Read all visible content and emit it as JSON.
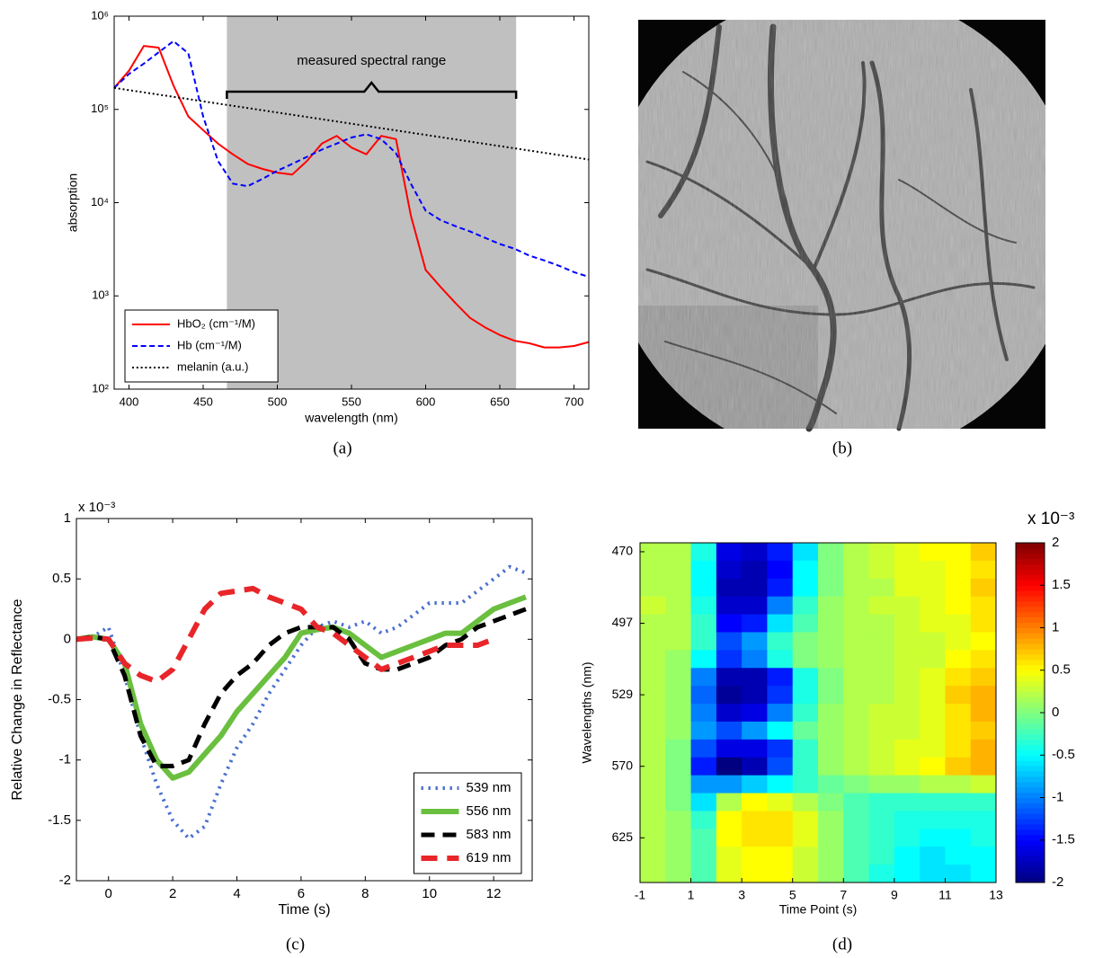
{
  "chart_data": [
    {
      "type": "line",
      "caption": "(a)",
      "xlabel": "wavelength (nm)",
      "ylabel": "absorption",
      "annotation": "measured spectral range",
      "span": [
        466,
        661
      ],
      "span_color": "#c0c0c0",
      "xlim": [
        390,
        710
      ],
      "xticks": [
        400,
        450,
        500,
        550,
        600,
        650,
        700
      ],
      "ylog": true,
      "ylim": [
        100,
        1000000
      ],
      "yticks": [
        {
          "value": 100,
          "label": "10²"
        },
        {
          "value": 1000,
          "label": "10³"
        },
        {
          "value": 10000,
          "label": "10⁴"
        },
        {
          "value": 100000,
          "label": "10⁵"
        },
        {
          "value": 1000000,
          "label": "10⁶"
        }
      ],
      "legend": "lower left",
      "x": [
        390,
        400,
        410,
        420,
        430,
        440,
        450,
        460,
        470,
        480,
        490,
        500,
        510,
        520,
        530,
        540,
        550,
        560,
        570,
        580,
        590,
        600,
        610,
        620,
        630,
        640,
        650,
        660,
        670,
        680,
        690,
        700,
        710
      ],
      "series": [
        {
          "name": "HbO₂ (cm⁻¹/M)",
          "color": "#ff0000",
          "style": "solid",
          "width": 2,
          "values": [
            170000,
            260000,
            480000,
            460000,
            180000,
            84000,
            60000,
            43000,
            33000,
            26000,
            23000,
            21000,
            20000,
            28000,
            43000,
            52000,
            39000,
            33000,
            52000,
            48000,
            7300,
            1900,
            1250,
            840,
            580,
            460,
            380,
            330,
            310,
            280,
            280,
            290,
            320
          ]
        },
        {
          "name": "Hb (cm⁻¹/M)",
          "color": "#0000ff",
          "style": "dashed",
          "width": 2,
          "values": [
            170000,
            240000,
            310000,
            410000,
            540000,
            400000,
            84000,
            28000,
            16000,
            15000,
            18000,
            22000,
            26000,
            31000,
            37000,
            43000,
            50000,
            54000,
            48000,
            34000,
            16000,
            8200,
            6500,
            5600,
            4900,
            4200,
            3600,
            3200,
            2700,
            2400,
            2100,
            1800,
            1600
          ]
        },
        {
          "name": "melanin (a.u.)",
          "color": "#000000",
          "style": "dotted",
          "width": 2,
          "x": [
            390,
            710
          ],
          "values": [
            170000,
            29000
          ]
        }
      ]
    },
    {
      "type": "line",
      "caption": "(c)",
      "xlabel": "Time (s)",
      "ylabel": "Relative Change in Reflectance",
      "y_offset_label": "x 10⁻³",
      "xlim": [
        -1,
        13.2
      ],
      "xticks": [
        0,
        2,
        4,
        6,
        8,
        10,
        12
      ],
      "ylim": [
        -2,
        1
      ],
      "yticks": [
        -2,
        -1.5,
        -1,
        -0.5,
        0,
        0.5,
        1
      ],
      "legend": "lower right",
      "x": [
        -1,
        -0.5,
        0,
        0.5,
        1,
        1.5,
        2,
        2.5,
        3,
        3.5,
        4,
        4.5,
        5,
        5.5,
        6,
        6.5,
        7,
        7.5,
        8,
        8.5,
        9,
        9.5,
        10,
        10.5,
        11,
        11.5,
        12,
        12.5,
        13
      ],
      "series": [
        {
          "name": "539 nm",
          "color": "#4a6fd0",
          "style": "dotted",
          "width": 4,
          "values": [
            0,
            0.02,
            0.1,
            -0.3,
            -0.8,
            -1.2,
            -1.5,
            -1.65,
            -1.55,
            -1.2,
            -0.9,
            -0.7,
            -0.45,
            -0.25,
            -0.05,
            0.1,
            0.15,
            0.1,
            0.15,
            0.05,
            0.1,
            0.2,
            0.3,
            0.3,
            0.3,
            0.4,
            0.5,
            0.6,
            0.55
          ]
        },
        {
          "name": "556 nm",
          "color": "#6abf3f",
          "style": "solid",
          "width": 6,
          "values": [
            0,
            0.02,
            0,
            -0.2,
            -0.7,
            -1.0,
            -1.15,
            -1.1,
            -0.95,
            -0.8,
            -0.6,
            -0.45,
            -0.3,
            -0.15,
            0.05,
            0.08,
            0.1,
            0.05,
            -0.05,
            -0.15,
            -0.1,
            -0.05,
            0,
            0.05,
            0.05,
            0.15,
            0.25,
            0.3,
            0.35
          ]
        },
        {
          "name": "583 nm",
          "color": "#000000",
          "style": "dashed",
          "width": 5,
          "values": [
            0,
            0.02,
            0,
            -0.3,
            -0.8,
            -1.05,
            -1.05,
            -1.0,
            -0.7,
            -0.45,
            -0.3,
            -0.2,
            -0.05,
            0.05,
            0.1,
            0.1,
            0.1,
            0,
            -0.2,
            -0.25,
            -0.25,
            -0.2,
            -0.15,
            -0.05,
            0,
            0.1,
            0.15,
            0.2,
            0.25
          ]
        },
        {
          "name": "619 nm",
          "color": "#e8262a",
          "style": "dashed",
          "width": 6,
          "values": [
            0,
            0.01,
            0,
            -0.2,
            -0.3,
            -0.35,
            -0.25,
            0,
            0.25,
            0.38,
            0.4,
            0.42,
            0.35,
            0.3,
            0.25,
            0.1,
            0.05,
            -0.05,
            -0.15,
            -0.25,
            -0.2,
            -0.15,
            -0.1,
            -0.05,
            -0.05,
            -0.05,
            0,
            null,
            null
          ]
        }
      ]
    },
    {
      "type": "heatmap",
      "caption": "(d)",
      "xlabel": "Time Point (s)",
      "ylabel": "Wavelengths (nm)",
      "colorbar_label": "x 10⁻³",
      "colormap": "jet",
      "xlim": [
        -1,
        13
      ],
      "xticks": [
        -1,
        1,
        3,
        5,
        7,
        9,
        11,
        13
      ],
      "zlim": [
        -2,
        2
      ],
      "zticks": [
        -2,
        -1.5,
        -1,
        -0.5,
        0,
        0.5,
        1,
        1.5,
        2
      ],
      "x": [
        -0.5,
        0.5,
        1.5,
        2.5,
        3.5,
        4.5,
        5.5,
        6.5,
        7.5,
        8.5,
        9.5,
        10.5,
        11.5,
        12.5
      ],
      "categories": [
        470,
        null,
        null,
        null,
        497,
        null,
        null,
        null,
        529,
        null,
        null,
        null,
        570,
        null,
        null,
        null,
        625,
        null,
        null
      ],
      "values": [
        [
          0.2,
          0.2,
          -0.4,
          -1.6,
          -1.7,
          -1.4,
          -0.6,
          0.0,
          0.2,
          0.3,
          0.4,
          0.5,
          0.5,
          0.7
        ],
        [
          0.2,
          0.2,
          -0.5,
          -1.7,
          -1.8,
          -1.5,
          -0.5,
          0.0,
          0.2,
          0.3,
          0.4,
          0.4,
          0.5,
          0.6
        ],
        [
          0.2,
          0.2,
          -0.5,
          -1.8,
          -1.8,
          -1.4,
          -0.5,
          0.0,
          0.2,
          0.2,
          0.4,
          0.4,
          0.5,
          0.7
        ],
        [
          0.3,
          0.2,
          -0.4,
          -1.7,
          -1.7,
          -1.0,
          -0.3,
          0.1,
          0.2,
          0.3,
          0.3,
          0.4,
          0.5,
          0.6
        ],
        [
          0.2,
          0.2,
          -0.3,
          -1.5,
          -1.4,
          -0.6,
          -0.2,
          0.1,
          0.2,
          0.2,
          0.3,
          0.4,
          0.4,
          0.6
        ],
        [
          0.2,
          0.2,
          -0.3,
          -1.2,
          -0.9,
          -0.3,
          0.0,
          0.1,
          0.2,
          0.2,
          0.3,
          0.3,
          0.4,
          0.5
        ],
        [
          0.2,
          0.1,
          -0.5,
          -1.3,
          -1.0,
          -0.4,
          0.0,
          0.1,
          0.2,
          0.2,
          0.3,
          0.3,
          0.5,
          0.6
        ],
        [
          0.2,
          0.1,
          -1.0,
          -1.8,
          -1.8,
          -1.4,
          -0.4,
          0.0,
          0.2,
          0.2,
          0.3,
          0.4,
          0.6,
          0.7
        ],
        [
          0.2,
          0.1,
          -1.1,
          -1.9,
          -1.8,
          -1.3,
          -0.4,
          0.0,
          0.2,
          0.2,
          0.3,
          0.4,
          0.7,
          0.8
        ],
        [
          0.2,
          0.1,
          -1.0,
          -1.7,
          -1.6,
          -1.0,
          -0.3,
          0.1,
          0.2,
          0.3,
          0.3,
          0.4,
          0.6,
          0.8
        ],
        [
          0.2,
          0.1,
          -0.9,
          -1.2,
          -0.9,
          -0.5,
          -0.1,
          0.1,
          0.2,
          0.3,
          0.3,
          0.4,
          0.6,
          0.7
        ],
        [
          0.2,
          0.0,
          -1.2,
          -1.6,
          -1.6,
          -1.3,
          -0.3,
          0.1,
          0.2,
          0.3,
          0.4,
          0.4,
          0.6,
          0.8
        ],
        [
          0.2,
          0.0,
          -1.4,
          -2.0,
          -1.8,
          -1.2,
          -0.3,
          0.1,
          0.2,
          0.3,
          0.4,
          0.5,
          0.7,
          0.8
        ],
        [
          0.2,
          0.0,
          -0.9,
          -0.9,
          -0.7,
          -0.5,
          -0.3,
          -0.1,
          0.0,
          0.1,
          0.1,
          0.2,
          0.2,
          0.3
        ],
        [
          0.2,
          0.0,
          -0.6,
          0.2,
          0.5,
          0.4,
          0.2,
          0.0,
          -0.2,
          -0.3,
          -0.3,
          -0.3,
          -0.3,
          -0.3
        ],
        [
          0.2,
          0.1,
          -0.3,
          0.5,
          0.6,
          0.6,
          0.4,
          0.1,
          -0.2,
          -0.3,
          -0.4,
          -0.4,
          -0.4,
          -0.4
        ],
        [
          0.2,
          0.1,
          -0.2,
          0.5,
          0.6,
          0.6,
          0.4,
          0.1,
          -0.2,
          -0.3,
          -0.4,
          -0.5,
          -0.5,
          -0.4
        ],
        [
          0.2,
          0.1,
          -0.2,
          0.4,
          0.5,
          0.5,
          0.3,
          0.1,
          -0.2,
          -0.3,
          -0.5,
          -0.6,
          -0.5,
          -0.5
        ],
        [
          0.2,
          0.1,
          -0.2,
          0.4,
          0.5,
          0.5,
          0.3,
          0.1,
          -0.2,
          -0.4,
          -0.5,
          -0.6,
          -0.6,
          -0.5
        ]
      ]
    }
  ],
  "image": {
    "caption": "(b)"
  }
}
